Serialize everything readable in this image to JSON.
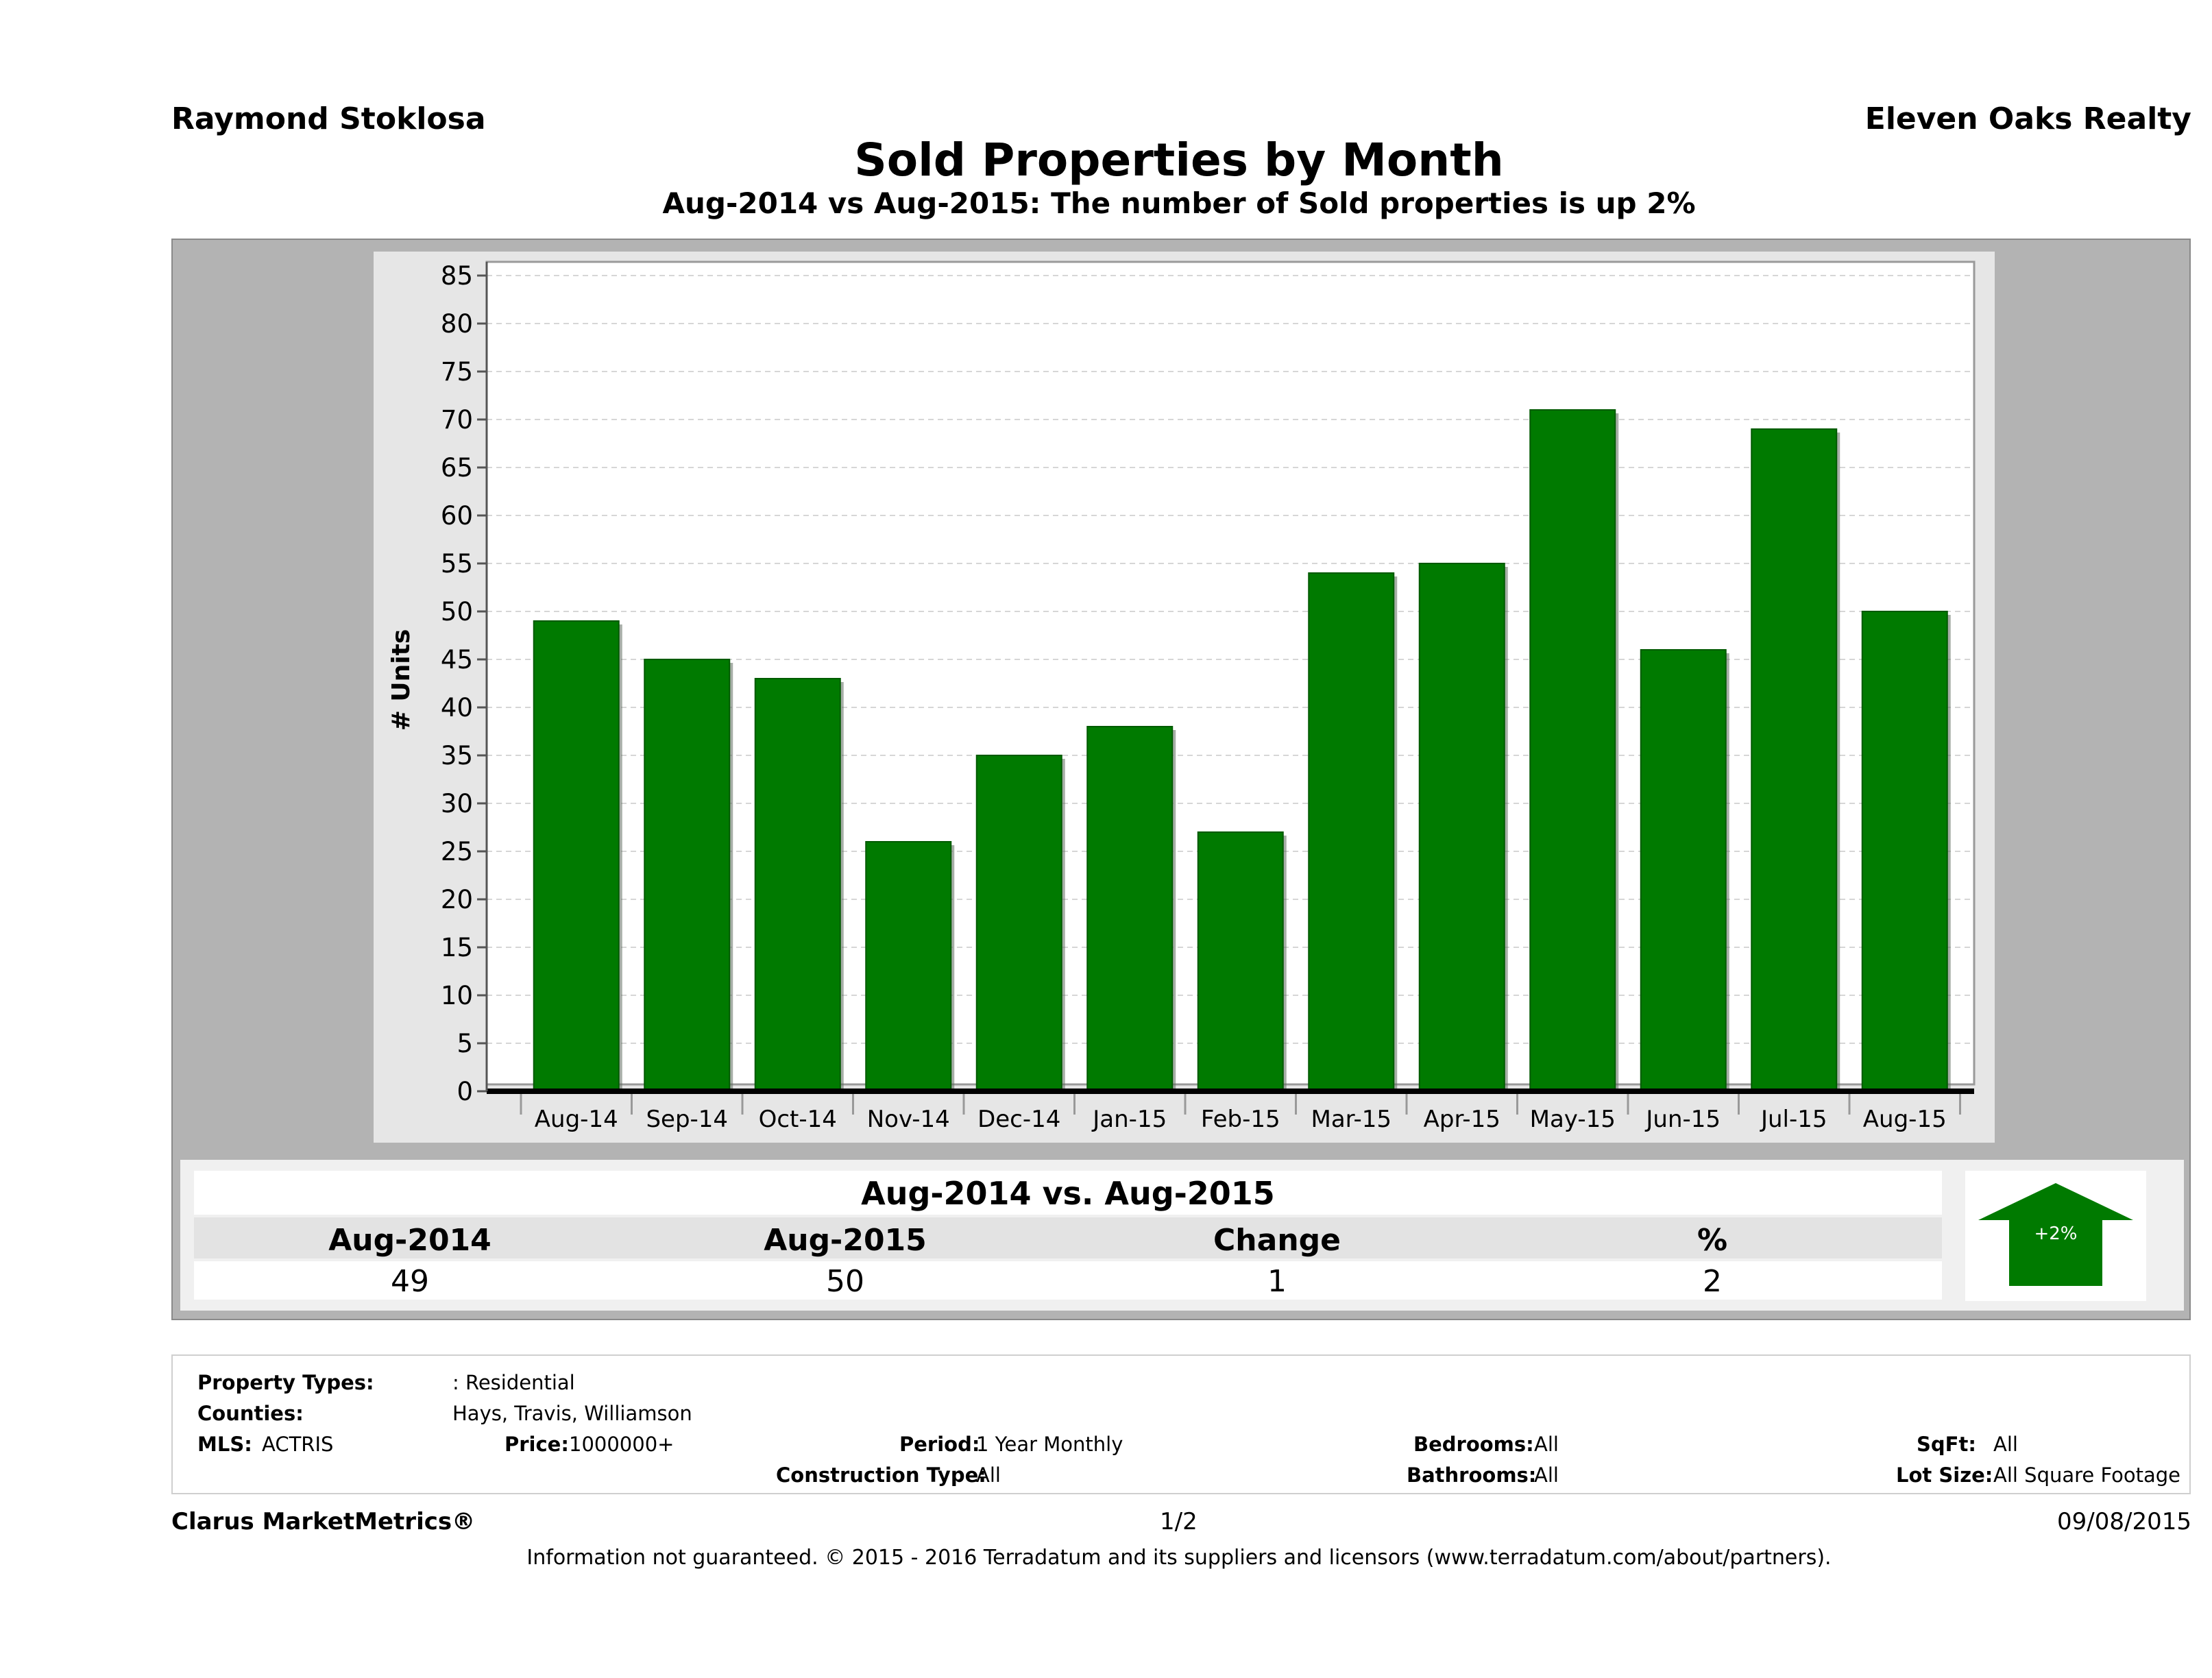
{
  "header": {
    "agent": "Raymond Stoklosa",
    "brokerage": "Eleven Oaks Realty",
    "title": "Sold Properties by Month",
    "subtitle": "Aug-2014 vs Aug-2015: The number of Sold  properties is up 2%"
  },
  "chart_data": {
    "type": "bar",
    "categories": [
      "Aug-14",
      "Sep-14",
      "Oct-14",
      "Nov-14",
      "Dec-14",
      "Jan-15",
      "Feb-15",
      "Mar-15",
      "Apr-15",
      "May-15",
      "Jun-15",
      "Jul-15",
      "Aug-15"
    ],
    "values": [
      49,
      45,
      43,
      26,
      35,
      38,
      27,
      54,
      55,
      71,
      46,
      69,
      50
    ],
    "ylabel": "# Units",
    "xlabel": "",
    "ylim": [
      0,
      85
    ],
    "yticks": [
      0,
      5,
      10,
      15,
      20,
      25,
      30,
      35,
      40,
      45,
      50,
      55,
      60,
      65,
      70,
      75,
      80,
      85
    ],
    "grid": true,
    "bar_color": "#007a00"
  },
  "comparison": {
    "title": "Aug-2014 vs. Aug-2015",
    "headers": [
      "Aug-2014",
      "Aug-2015",
      "Change",
      "%"
    ],
    "values": [
      "49",
      "50",
      "1",
      "2"
    ],
    "arrow_label": "+2%",
    "arrow_direction": "up",
    "arrow_color": "#007a00"
  },
  "filters": {
    "property_types_label": "Property Types:",
    "property_types_value": ": Residential",
    "counties_label": "Counties:",
    "counties_value": "Hays, Travis, Williamson",
    "mls_label": "MLS:",
    "mls_value": "ACTRIS",
    "price_label": "Price:",
    "price_value": "1000000+",
    "period_label": "Period:",
    "period_value": "1 Year Monthly",
    "construction_label": "Construction Type:",
    "construction_value": "All",
    "bedrooms_label": "Bedrooms:",
    "bedrooms_value": "All",
    "bathrooms_label": "Bathrooms:",
    "bathrooms_value": "All",
    "sqft_label": "SqFt:",
    "sqft_value": "All",
    "lot_label": "Lot Size:",
    "lot_value": "All Square Footage"
  },
  "footer": {
    "product": "Clarus MarketMetrics®",
    "page": "1/2",
    "date": "09/08/2015",
    "disclaimer": "Information not guaranteed. © 2015 - 2016 Terradatum and its suppliers and licensors (www.terradatum.com/about/partners)."
  }
}
